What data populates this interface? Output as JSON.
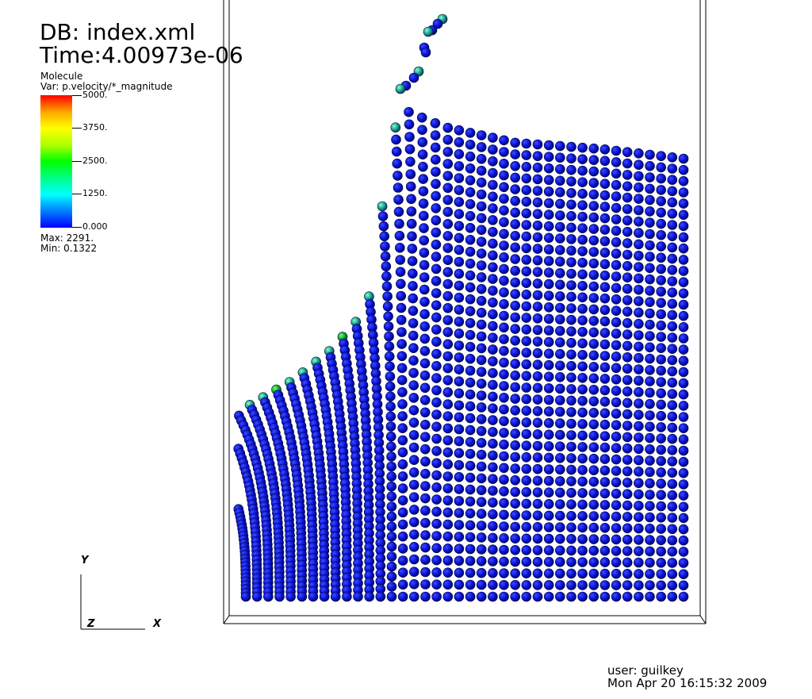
{
  "header": {
    "db": "DB: index.xml",
    "time": "Time:4.00973e-06"
  },
  "legend": {
    "title": "Molecule",
    "variable": "Var: p.velocity/*_magnitude",
    "ticks": [
      "5000.",
      "3750.",
      "2500.",
      "1250.",
      "0.000"
    ],
    "max": "Max:  2291.",
    "min": "Min:  0.1322",
    "colors": {
      "low": "#0000ff",
      "mid_low": "#00ffff",
      "mid": "#00ff00",
      "mid_high": "#ffff00",
      "high": "#ff0000"
    }
  },
  "axes": {
    "y": "Y",
    "z": "Z",
    "x": "X"
  },
  "footer": {
    "user": "user: guilkey",
    "date": "Mon Apr 20 16:15:32 2009"
  }
}
